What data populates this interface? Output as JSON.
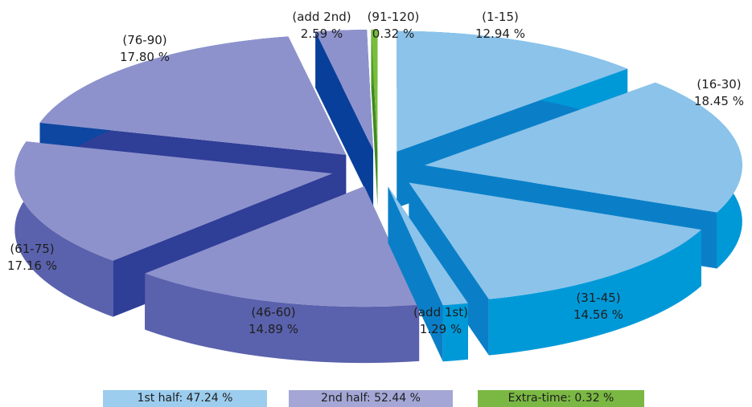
{
  "chart_data": {
    "type": "pie",
    "slices": [
      {
        "label": "(1-15)",
        "value": 12.94,
        "display": "12.94 %",
        "group": "1st half"
      },
      {
        "label": "(16-30)",
        "value": 18.45,
        "display": "18.45 %",
        "group": "1st half"
      },
      {
        "label": "(31-45)",
        "value": 14.56,
        "display": "14.56 %",
        "group": "1st half"
      },
      {
        "label": "(add 1st)",
        "value": 1.29,
        "display": "1.29 %",
        "group": "1st half"
      },
      {
        "label": "(46-60)",
        "value": 14.89,
        "display": "14.89 %",
        "group": "2nd half"
      },
      {
        "label": "(61-75)",
        "value": 17.16,
        "display": "17.16 %",
        "group": "2nd half"
      },
      {
        "label": "(76-90)",
        "value": 17.8,
        "display": "17.80 %",
        "group": "2nd half"
      },
      {
        "label": "(add 2nd)",
        "value": 2.59,
        "display": "2.59 %",
        "group": "2nd half"
      },
      {
        "label": "(91-120)",
        "value": 0.32,
        "display": "0.32 %",
        "group": "Extra-time"
      }
    ],
    "legend": [
      {
        "label": "1st half: 47.24 %",
        "color": "#9ccdee"
      },
      {
        "label": "2nd half: 52.44 %",
        "color": "#a4a7d5"
      },
      {
        "label": "Extra-time: 0.32 %",
        "color": "#7ab843"
      }
    ],
    "legend_position": "bottom",
    "colors": {
      "1st half": {
        "top": "#8cc3ea",
        "side": "#0099d8",
        "cut": "#0a7fc8"
      },
      "2nd half": {
        "top": "#8e92cc",
        "side": "#5a62ad",
        "cut": "#2f3e97"
      },
      "Extra-time": {
        "top": "#78be3c",
        "side": "#4f9a2a",
        "cut": "#3f8a22"
      },
      "(add 2nd)": {
        "top": "#8e92cc",
        "side": "#083f9b",
        "cut": "#083f9b"
      },
      "(76-90)": {
        "top": "#8e92cc",
        "side": "#0d47a1",
        "cut": "#2f3e97"
      }
    }
  }
}
